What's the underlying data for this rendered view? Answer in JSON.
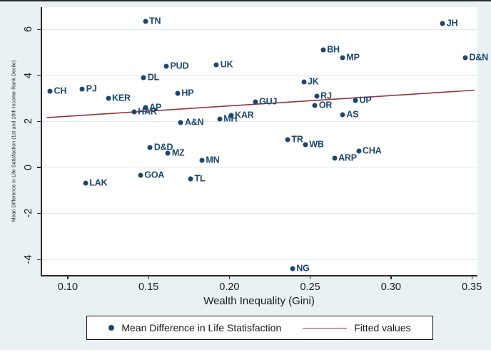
{
  "figure": {
    "x_axis_label": "Wealth Inequality (Gini)",
    "y_axis_label": "Mean Difference in Life Satisfaction (1st and 10th Income Rank Decile)"
  },
  "legend": {
    "scatter_label": "Mean Difference in Life Statisfaction",
    "line_label": "Fitted values"
  },
  "colors": {
    "marker_navy": "#1a476f",
    "fit_line_maroon": "#90353b",
    "canvas_bg": "#e9f1f2",
    "gridline": "#dfe9ec",
    "axis": "#2b2b2b"
  },
  "chart_data": {
    "type": "scatter",
    "title": "",
    "xlabel": "Wealth Inequality (Gini)",
    "ylabel": "Mean Difference in Life Satisfaction (1st and 10th Income Rank Decile)",
    "xlim": [
      0.0837,
      0.3535
    ],
    "ylim": [
      -4.68,
      6.96
    ],
    "grid": true,
    "legend_position": "bottom-center",
    "x_ticks": [
      {
        "value": 0.1,
        "label": "0.10"
      },
      {
        "value": 0.15,
        "label": "0.15"
      },
      {
        "value": 0.2,
        "label": "0.20"
      },
      {
        "value": 0.25,
        "label": "0.25"
      },
      {
        "value": 0.3,
        "label": "0.30"
      },
      {
        "value": 0.35,
        "label": "0.35"
      }
    ],
    "y_ticks": [
      {
        "value": 6,
        "label": "6"
      },
      {
        "value": 4,
        "label": "4"
      },
      {
        "value": 2,
        "label": "2"
      },
      {
        "value": 0,
        "label": "0"
      },
      {
        "value": -2,
        "label": "-2"
      },
      {
        "value": -4,
        "label": "-4"
      }
    ],
    "points": [
      {
        "label": "TN",
        "x": 0.148,
        "y": 6.35
      },
      {
        "label": "JH",
        "x": 0.332,
        "y": 6.25
      },
      {
        "label": "BH",
        "x": 0.258,
        "y": 5.1
      },
      {
        "label": "MP",
        "x": 0.27,
        "y": 4.75
      },
      {
        "label": "D&N",
        "x": 0.346,
        "y": 4.75
      },
      {
        "label": "UK",
        "x": 0.192,
        "y": 4.45
      },
      {
        "label": "PUD",
        "x": 0.161,
        "y": 4.4
      },
      {
        "label": "DL",
        "x": 0.147,
        "y": 3.9
      },
      {
        "label": "JK",
        "x": 0.246,
        "y": 3.7
      },
      {
        "label": "PJ",
        "x": 0.109,
        "y": 3.4
      },
      {
        "label": "CH",
        "x": 0.089,
        "y": 3.3
      },
      {
        "label": "HP",
        "x": 0.168,
        "y": 3.2
      },
      {
        "label": "RJ",
        "x": 0.254,
        "y": 3.1
      },
      {
        "label": "KER",
        "x": 0.125,
        "y": 3.0
      },
      {
        "label": "UP",
        "x": 0.278,
        "y": 2.9
      },
      {
        "label": "GUJ",
        "x": 0.216,
        "y": 2.85
      },
      {
        "label": "OR",
        "x": 0.253,
        "y": 2.7
      },
      {
        "label": "AP",
        "x": 0.148,
        "y": 2.6
      },
      {
        "label": "HAR",
        "x": 0.141,
        "y": 2.4
      },
      {
        "label": "AS",
        "x": 0.27,
        "y": 2.3
      },
      {
        "label": "KAR",
        "x": 0.201,
        "y": 2.25
      },
      {
        "label": "MH",
        "x": 0.194,
        "y": 2.1
      },
      {
        "label": "A&N",
        "x": 0.17,
        "y": 1.95
      },
      {
        "label": "TR",
        "x": 0.236,
        "y": 1.2
      },
      {
        "label": "WB",
        "x": 0.247,
        "y": 1.0
      },
      {
        "label": "D&D",
        "x": 0.151,
        "y": 0.85
      },
      {
        "label": "CHA",
        "x": 0.28,
        "y": 0.7
      },
      {
        "label": "MZ",
        "x": 0.162,
        "y": 0.6
      },
      {
        "label": "ARP",
        "x": 0.265,
        "y": 0.4
      },
      {
        "label": "MN",
        "x": 0.183,
        "y": 0.3
      },
      {
        "label": "GOA",
        "x": 0.145,
        "y": -0.35
      },
      {
        "label": "TL",
        "x": 0.176,
        "y": -0.5
      },
      {
        "label": "LAK",
        "x": 0.111,
        "y": -0.7
      },
      {
        "label": "NG",
        "x": 0.239,
        "y": -4.4
      }
    ],
    "fitted_line": {
      "x0": 0.087,
      "y0": 2.16,
      "x1": 0.3515,
      "y1": 3.35
    }
  }
}
